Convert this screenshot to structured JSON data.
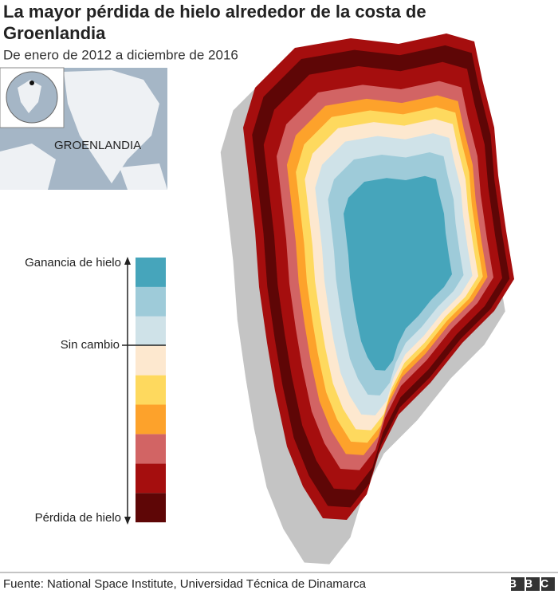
{
  "header": {
    "title_line1": "La mayor pérdida de hielo alrededor de la costa de",
    "title_line2": "Groenlandia",
    "subtitle": "De enero de 2012 a diciembre de 2016"
  },
  "inset": {
    "label": "GROENLANDIA"
  },
  "legend": {
    "top_label": "Ganancia de hielo",
    "middle_label": "Sin cambio",
    "bottom_label": "Pérdida de hielo",
    "colors": [
      "#46a5bb",
      "#9ecbd9",
      "#cfe2e8",
      "#fde8cf",
      "#fed95e",
      "#fda22b",
      "#d26464",
      "#a50e0e",
      "#5e0606"
    ]
  },
  "footer": {
    "source": "Fuente: National Space Institute, Universidad Técnica de Dinamarca",
    "logo": "BBC"
  }
}
